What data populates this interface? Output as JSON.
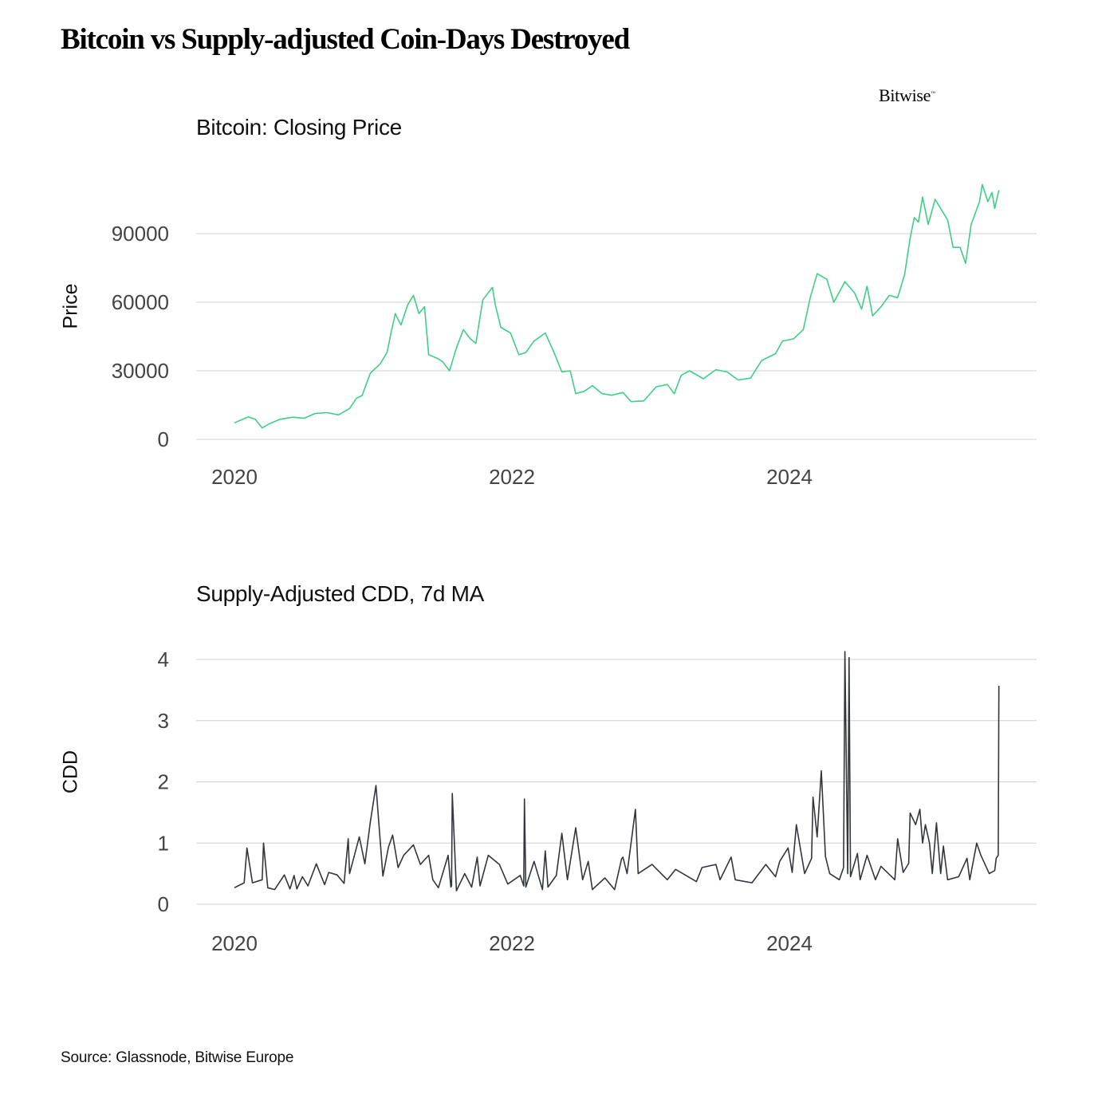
{
  "title": "Bitcoin vs Supply-adjusted Coin-Days Destroyed",
  "logo": "Bitwise",
  "source": "Source: Glassnode, Bitwise Europe",
  "colors": {
    "price_line": "#3ecf84",
    "cdd_line": "#33363b",
    "grid": "#d0d0d0"
  },
  "chart_data": [
    {
      "type": "line",
      "title": "Bitcoin: Closing Price",
      "xlabel": "",
      "ylabel": "Price",
      "xlim": [
        2019.98,
        5000
      ],
      "x_ticks": [
        2020,
        2022,
        2024
      ],
      "ylim": [
        0,
        120000
      ],
      "y_ticks": [
        0,
        30000,
        60000,
        90000
      ],
      "grid": "horizontal",
      "x_units": "year",
      "series": [
        {
          "color": "#3ecf84",
          "points": [
            [
              2020.0,
              7200
            ],
            [
              2020.04,
              8300
            ],
            [
              2020.1,
              9800
            ],
            [
              2020.15,
              8800
            ],
            [
              2020.2,
              5000
            ],
            [
              2020.25,
              6800
            ],
            [
              2020.33,
              8800
            ],
            [
              2020.42,
              9700
            ],
            [
              2020.5,
              9200
            ],
            [
              2020.58,
              11300
            ],
            [
              2020.67,
              11700
            ],
            [
              2020.75,
              10700
            ],
            [
              2020.83,
              13500
            ],
            [
              2020.88,
              18000
            ],
            [
              2020.92,
              19200
            ],
            [
              2020.98,
              29000
            ],
            [
              2021.05,
              33000
            ],
            [
              2021.1,
              38000
            ],
            [
              2021.13,
              47000
            ],
            [
              2021.16,
              55000
            ],
            [
              2021.2,
              50000
            ],
            [
              2021.25,
              59000
            ],
            [
              2021.29,
              63000
            ],
            [
              2021.33,
              55000
            ],
            [
              2021.37,
              58000
            ],
            [
              2021.4,
              37000
            ],
            [
              2021.46,
              35500
            ],
            [
              2021.5,
              34000
            ],
            [
              2021.55,
              30000
            ],
            [
              2021.6,
              40000
            ],
            [
              2021.65,
              48000
            ],
            [
              2021.7,
              44000
            ],
            [
              2021.74,
              42000
            ],
            [
              2021.79,
              61000
            ],
            [
              2021.86,
              66500
            ],
            [
              2021.88,
              59000
            ],
            [
              2021.92,
              49000
            ],
            [
              2021.99,
              46500
            ],
            [
              2022.05,
              37000
            ],
            [
              2022.1,
              38000
            ],
            [
              2022.16,
              43000
            ],
            [
              2022.24,
              46500
            ],
            [
              2022.3,
              38500
            ],
            [
              2022.36,
              29500
            ],
            [
              2022.42,
              30000
            ],
            [
              2022.46,
              20000
            ],
            [
              2022.52,
              21000
            ],
            [
              2022.58,
              23500
            ],
            [
              2022.65,
              20000
            ],
            [
              2022.72,
              19300
            ],
            [
              2022.8,
              20500
            ],
            [
              2022.86,
              16500
            ],
            [
              2022.95,
              16800
            ],
            [
              2023.04,
              23000
            ],
            [
              2023.12,
              24000
            ],
            [
              2023.17,
              20000
            ],
            [
              2023.22,
              28000
            ],
            [
              2023.28,
              30000
            ],
            [
              2023.38,
              26500
            ],
            [
              2023.47,
              30500
            ],
            [
              2023.55,
              29500
            ],
            [
              2023.63,
              26000
            ],
            [
              2023.72,
              26800
            ],
            [
              2023.8,
              34500
            ],
            [
              2023.9,
              37500
            ],
            [
              2023.95,
              43000
            ],
            [
              2024.03,
              44000
            ],
            [
              2024.1,
              48000
            ],
            [
              2024.15,
              62000
            ],
            [
              2024.2,
              72500
            ],
            [
              2024.27,
              70000
            ],
            [
              2024.32,
              60000
            ],
            [
              2024.4,
              69000
            ],
            [
              2024.47,
              64000
            ],
            [
              2024.52,
              57000
            ],
            [
              2024.56,
              67000
            ],
            [
              2024.6,
              54000
            ],
            [
              2024.66,
              58000
            ],
            [
              2024.72,
              63000
            ],
            [
              2024.78,
              62000
            ],
            [
              2024.83,
              72000
            ],
            [
              2024.87,
              88000
            ],
            [
              2024.9,
              97000
            ],
            [
              2024.93,
              95000
            ],
            [
              2024.96,
              106000
            ],
            [
              2025.0,
              94000
            ],
            [
              2025.05,
              105000
            ],
            [
              2025.09,
              101000
            ],
            [
              2025.14,
              96000
            ],
            [
              2025.18,
              84000
            ],
            [
              2025.23,
              84000
            ],
            [
              2025.27,
              77000
            ],
            [
              2025.31,
              94000
            ],
            [
              2025.37,
              104000
            ],
            [
              2025.39,
              111500
            ],
            [
              2025.43,
              104000
            ],
            [
              2025.46,
              108000
            ],
            [
              2025.48,
              101000
            ],
            [
              2025.51,
              109000
            ]
          ]
        }
      ]
    },
    {
      "type": "line",
      "title": "Supply-Adjusted CDD, 7d MA",
      "xlabel": "",
      "ylabel": "CDD",
      "x_ticks": [
        2020,
        2022,
        2024
      ],
      "ylim": [
        0,
        4.2
      ],
      "y_ticks": [
        0,
        1,
        2,
        3,
        4
      ],
      "grid": "horizontal",
      "x_units": "year",
      "series": [
        {
          "color": "#33363b",
          "points": [
            [
              2020.0,
              0.27
            ],
            [
              2020.07,
              0.35
            ],
            [
              2020.09,
              0.92
            ],
            [
              2020.13,
              0.35
            ],
            [
              2020.2,
              0.4
            ],
            [
              2020.21,
              1.0
            ],
            [
              2020.24,
              0.27
            ],
            [
              2020.29,
              0.24
            ],
            [
              2020.36,
              0.48
            ],
            [
              2020.4,
              0.25
            ],
            [
              2020.43,
              0.47
            ],
            [
              2020.45,
              0.25
            ],
            [
              2020.49,
              0.45
            ],
            [
              2020.53,
              0.3
            ],
            [
              2020.59,
              0.66
            ],
            [
              2020.65,
              0.32
            ],
            [
              2020.68,
              0.52
            ],
            [
              2020.74,
              0.48
            ],
            [
              2020.79,
              0.34
            ],
            [
              2020.82,
              1.07
            ],
            [
              2020.83,
              0.5
            ],
            [
              2020.9,
              1.1
            ],
            [
              2020.94,
              0.66
            ],
            [
              2020.98,
              1.35
            ],
            [
              2021.02,
              1.94
            ],
            [
              2021.07,
              0.46
            ],
            [
              2021.11,
              0.93
            ],
            [
              2021.14,
              1.13
            ],
            [
              2021.18,
              0.6
            ],
            [
              2021.22,
              0.8
            ],
            [
              2021.29,
              0.97
            ],
            [
              2021.34,
              0.65
            ],
            [
              2021.4,
              0.8
            ],
            [
              2021.43,
              0.4
            ],
            [
              2021.47,
              0.27
            ],
            [
              2021.54,
              0.8
            ],
            [
              2021.56,
              0.28
            ],
            [
              2021.565,
              0.3
            ],
            [
              2021.57,
              1.81
            ],
            [
              2021.6,
              0.22
            ],
            [
              2021.66,
              0.5
            ],
            [
              2021.71,
              0.28
            ],
            [
              2021.75,
              0.77
            ],
            [
              2021.77,
              0.3
            ],
            [
              2021.83,
              0.8
            ],
            [
              2021.91,
              0.65
            ],
            [
              2021.97,
              0.33
            ],
            [
              2022.06,
              0.47
            ],
            [
              2022.085,
              0.3
            ],
            [
              2022.09,
              1.72
            ],
            [
              2022.1,
              0.28
            ],
            [
              2022.16,
              0.7
            ],
            [
              2022.22,
              0.24
            ],
            [
              2022.24,
              0.87
            ],
            [
              2022.26,
              0.28
            ],
            [
              2022.32,
              0.47
            ],
            [
              2022.36,
              1.16
            ],
            [
              2022.4,
              0.4
            ],
            [
              2022.46,
              1.25
            ],
            [
              2022.51,
              0.4
            ],
            [
              2022.55,
              0.7
            ],
            [
              2022.58,
              0.24
            ],
            [
              2022.67,
              0.43
            ],
            [
              2022.74,
              0.24
            ],
            [
              2022.79,
              0.74
            ],
            [
              2022.8,
              0.77
            ],
            [
              2022.83,
              0.5
            ],
            [
              2022.89,
              1.55
            ],
            [
              2022.91,
              0.5
            ],
            [
              2023.01,
              0.65
            ],
            [
              2023.12,
              0.4
            ],
            [
              2023.18,
              0.57
            ],
            [
              2023.33,
              0.37
            ],
            [
              2023.37,
              0.6
            ],
            [
              2023.47,
              0.65
            ],
            [
              2023.5,
              0.4
            ],
            [
              2023.58,
              0.77
            ],
            [
              2023.61,
              0.4
            ],
            [
              2023.73,
              0.35
            ],
            [
              2023.83,
              0.65
            ],
            [
              2023.9,
              0.45
            ],
            [
              2023.93,
              0.7
            ],
            [
              2023.99,
              0.92
            ],
            [
              2024.02,
              0.52
            ],
            [
              2024.05,
              1.3
            ],
            [
              2024.11,
              0.5
            ],
            [
              2024.16,
              0.75
            ],
            [
              2024.17,
              1.75
            ],
            [
              2024.2,
              1.1
            ],
            [
              2024.23,
              2.18
            ],
            [
              2024.26,
              0.78
            ],
            [
              2024.29,
              0.5
            ],
            [
              2024.36,
              0.4
            ],
            [
              2024.39,
              0.6
            ],
            [
              2024.4,
              4.13
            ],
            [
              2024.42,
              0.5
            ],
            [
              2024.43,
              4.03
            ],
            [
              2024.44,
              0.45
            ],
            [
              2024.49,
              0.83
            ],
            [
              2024.51,
              0.4
            ],
            [
              2024.56,
              0.8
            ],
            [
              2024.62,
              0.4
            ],
            [
              2024.66,
              0.62
            ],
            [
              2024.76,
              0.4
            ],
            [
              2024.78,
              1.07
            ],
            [
              2024.82,
              0.52
            ],
            [
              2024.86,
              0.67
            ],
            [
              2024.87,
              1.49
            ],
            [
              2024.91,
              1.3
            ],
            [
              2024.94,
              1.55
            ],
            [
              2024.96,
              1.0
            ],
            [
              2024.98,
              1.3
            ],
            [
              2025.01,
              1.0
            ],
            [
              2025.03,
              0.5
            ],
            [
              2025.06,
              1.33
            ],
            [
              2025.09,
              0.5
            ],
            [
              2025.11,
              0.95
            ],
            [
              2025.14,
              0.4
            ],
            [
              2025.22,
              0.45
            ],
            [
              2025.28,
              0.75
            ],
            [
              2025.3,
              0.4
            ],
            [
              2025.35,
              1.0
            ],
            [
              2025.38,
              0.8
            ],
            [
              2025.44,
              0.5
            ],
            [
              2025.48,
              0.55
            ],
            [
              2025.49,
              0.75
            ],
            [
              2025.505,
              0.8
            ],
            [
              2025.51,
              3.57
            ]
          ]
        }
      ]
    }
  ]
}
